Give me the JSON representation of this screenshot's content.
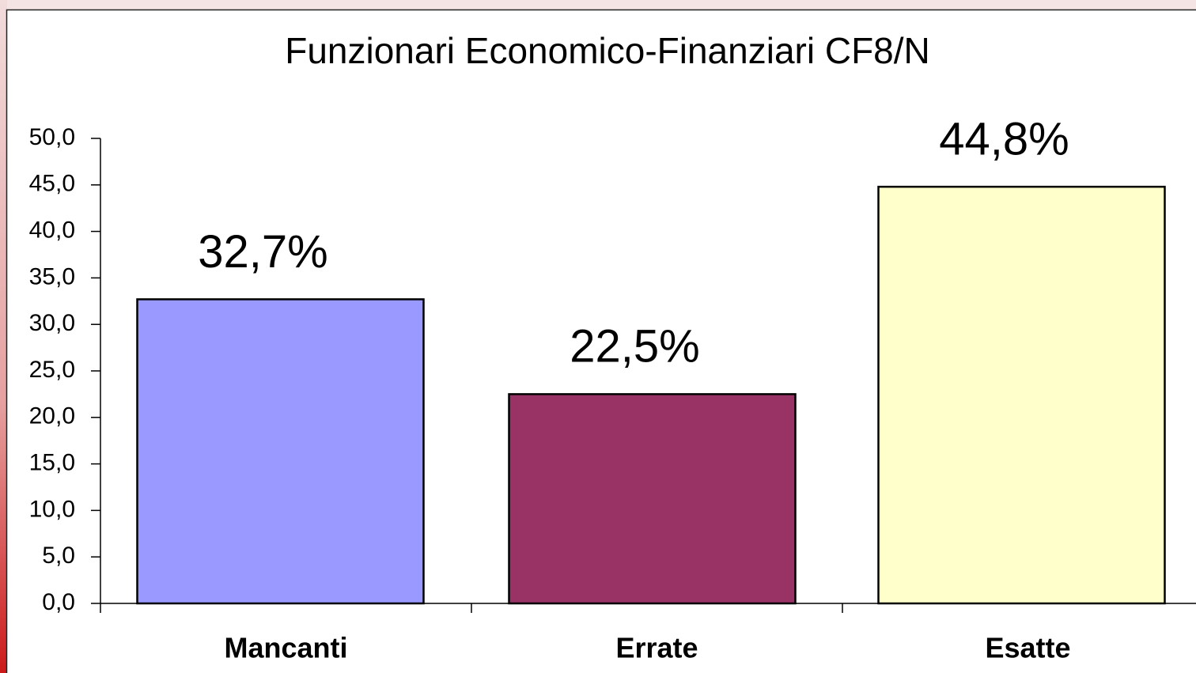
{
  "chart_data": {
    "type": "bar",
    "title": "Funzionari Economico-Finanziari CF8/N",
    "categories": [
      "Mancanti",
      "Errate",
      "Esatte"
    ],
    "values": [
      32.7,
      22.5,
      44.8
    ],
    "value_labels": [
      "32,7%",
      "22,5%",
      "44,8%"
    ],
    "colors": [
      "#9999ff",
      "#993366",
      "#ffffcc"
    ],
    "ylim": [
      0,
      50
    ],
    "yticks": [
      {
        "value": 0,
        "label": "0,0"
      },
      {
        "value": 5,
        "label": "5,0"
      },
      {
        "value": 10,
        "label": "10,0"
      },
      {
        "value": 15,
        "label": "15,0"
      },
      {
        "value": 20,
        "label": "20,0"
      },
      {
        "value": 25,
        "label": "25,0"
      },
      {
        "value": 30,
        "label": "30,0"
      },
      {
        "value": 35,
        "label": "35,0"
      },
      {
        "value": 40,
        "label": "40,0"
      },
      {
        "value": 45,
        "label": "45,0"
      },
      {
        "value": 50,
        "label": "50,0"
      }
    ],
    "grid": false
  }
}
